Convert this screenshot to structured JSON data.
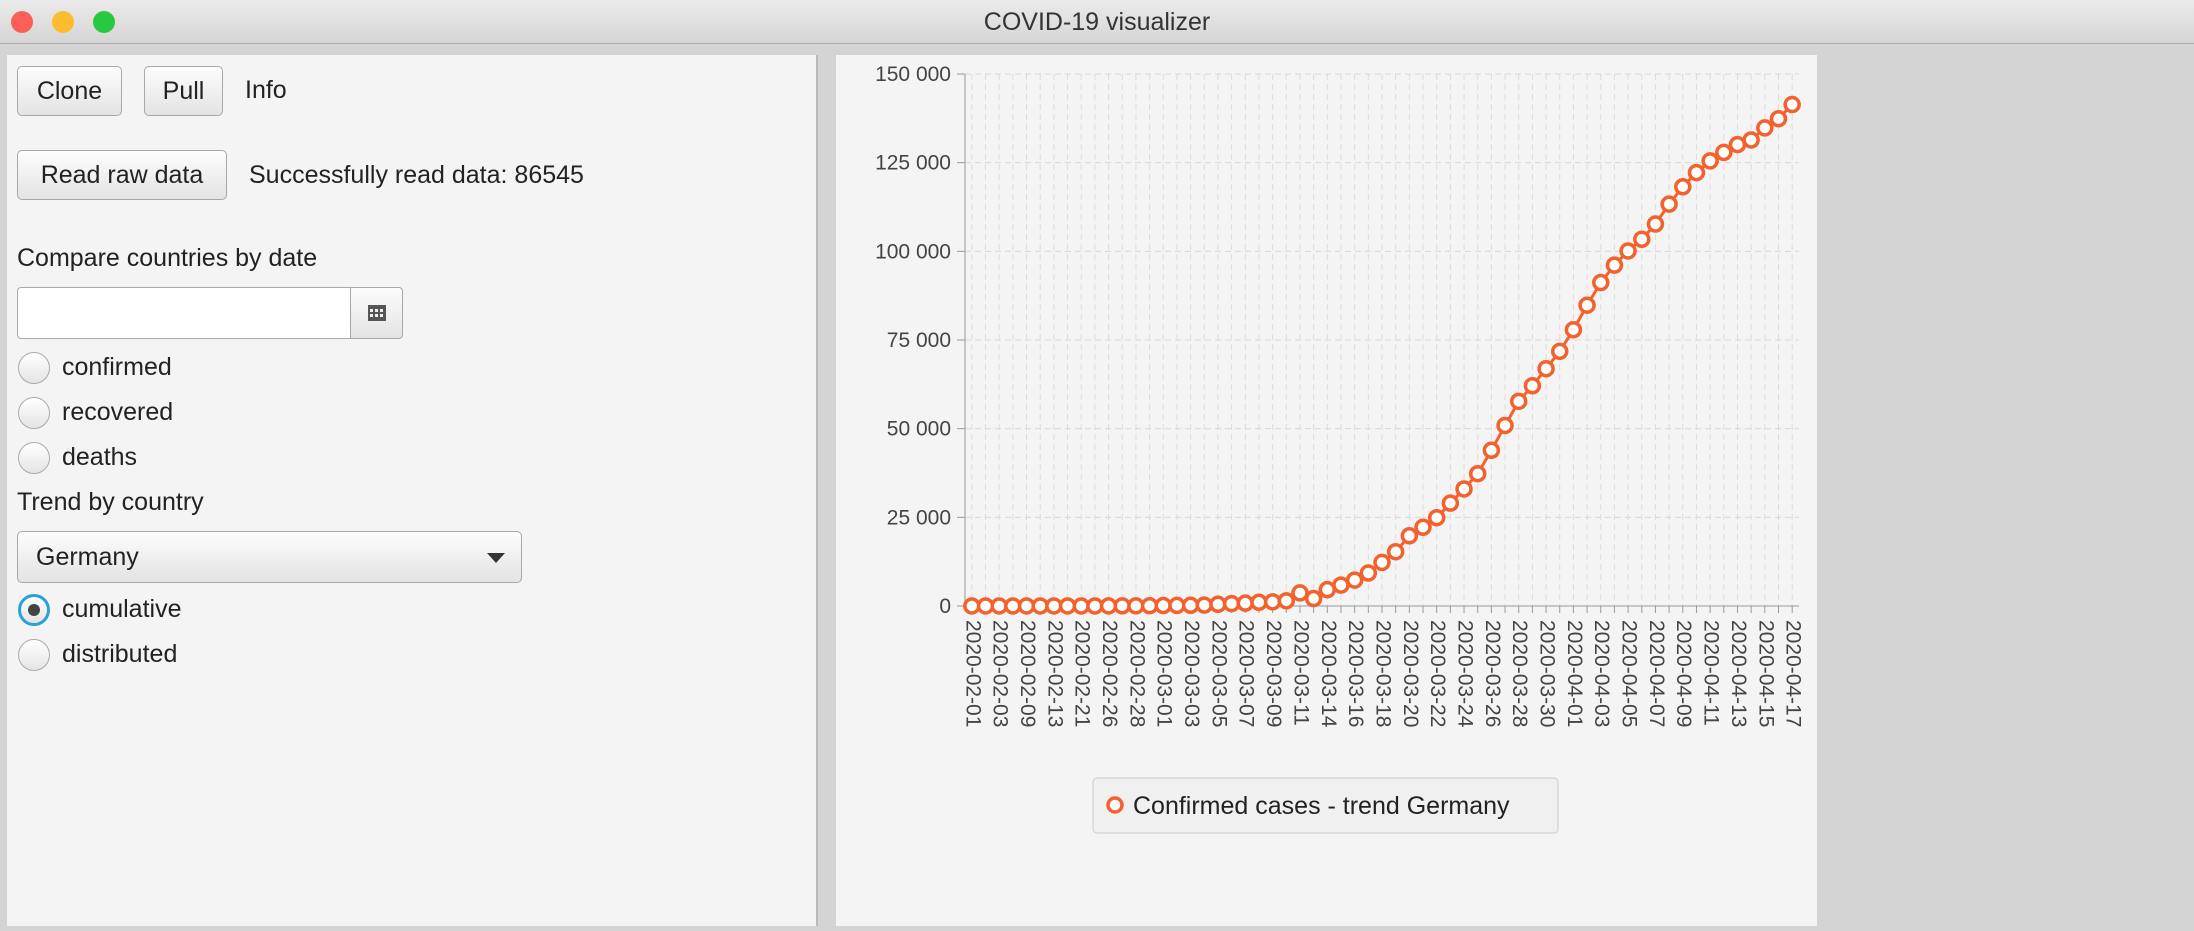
{
  "window": {
    "title": "COVID-19 visualizer"
  },
  "left_panel": {
    "clone_button": "Clone",
    "pull_button": "Pull",
    "info_label": "Info",
    "read_button": "Read raw data",
    "status": "Successfully read data: 86545",
    "compare_label": "Compare countries by date",
    "compare_options": [
      "confirmed",
      "recovered",
      "deaths"
    ],
    "trend_label": "Trend by country",
    "country": "Germany",
    "trend_options": [
      "cumulative",
      "distributed"
    ]
  },
  "chart_data": {
    "type": "line",
    "categories": [
      "2020-02-01",
      null,
      "2020-02-03",
      null,
      "2020-02-09",
      null,
      "2020-02-13",
      null,
      "2020-02-21",
      null,
      "2020-02-26",
      null,
      "2020-02-28",
      null,
      "2020-03-01",
      null,
      "2020-03-03",
      null,
      "2020-03-05",
      null,
      "2020-03-07",
      null,
      "2020-03-09",
      null,
      "2020-03-11",
      null,
      "2020-03-14",
      null,
      "2020-03-16",
      null,
      "2020-03-18",
      null,
      "2020-03-20",
      null,
      "2020-03-22",
      null,
      "2020-03-24",
      null,
      "2020-03-26",
      null,
      "2020-03-28",
      null,
      "2020-03-30",
      null,
      "2020-04-01",
      null,
      "2020-04-03",
      null,
      "2020-04-05",
      null,
      "2020-04-07",
      null,
      "2020-04-09",
      null,
      "2020-04-11",
      null,
      "2020-04-13",
      null,
      "2020-04-15",
      null,
      "2020-04-17"
    ],
    "series": [
      {
        "name": "Confirmed cases - trend Germany",
        "color": "#f3622d",
        "values": [
          8,
          10,
          12,
          12,
          13,
          14,
          16,
          16,
          16,
          16,
          27,
          46,
          48,
          79,
          130,
          159,
          196,
          262,
          482,
          670,
          799,
          1040,
          1176,
          1457,
          3700,
          2100,
          4600,
          5900,
          7300,
          9300,
          12300,
          15300,
          19800,
          22200,
          24900,
          29000,
          33000,
          37300,
          43900,
          50900,
          57700,
          62100,
          66900,
          71800,
          77900,
          84800,
          91200,
          96100,
          100100,
          103400,
          107700,
          113300,
          118200,
          122200,
          125500,
          127900,
          130100,
          131400,
          134800,
          137400,
          141400
        ]
      }
    ],
    "ylim": [
      0,
      150000
    ],
    "yticks": [
      0,
      {
        "value": 25000,
        "label": "25 000"
      },
      {
        "value": 50000,
        "label": "50 000"
      },
      {
        "value": 75000,
        "label": "75 000"
      },
      {
        "value": 100000,
        "label": "100 000"
      },
      {
        "value": 125000,
        "label": "125 000"
      },
      {
        "value": 150000,
        "label": "150 000"
      }
    ],
    "grid": true,
    "legend": "bottom"
  }
}
